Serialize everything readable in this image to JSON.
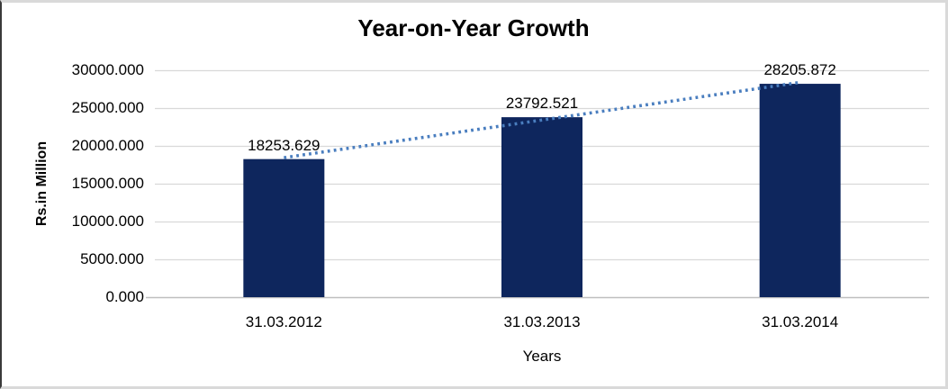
{
  "chart_data": {
    "type": "bar",
    "title": "Year-on-Year Growth",
    "categories": [
      "31.03.2012",
      "31.03.2013",
      "31.03.2014"
    ],
    "values": [
      18253.629,
      23792.521,
      28205.872
    ],
    "data_labels": [
      "18253.629",
      "23792.521",
      "28205.872"
    ],
    "xlabel": "Years",
    "ylabel": "Rs.in Million",
    "ylim": [
      0,
      30000
    ],
    "ytick_step": 5000,
    "ytick_labels": [
      "0.000",
      "5000.000",
      "10000.000",
      "15000.000",
      "20000.000",
      "25000.000",
      "30000.000"
    ],
    "grid": true,
    "legend": "none",
    "trendline": "linear-dotted",
    "colors": {
      "bar": "#0E265D",
      "trendline": "#4A7EBF",
      "gridline": "#D9D9D9",
      "axis_line": "#BFBFBF",
      "text": "#000000",
      "frame_border": "#D9D9D9",
      "left_edge": "#3A3A3A",
      "background": "#FFFFFF"
    }
  }
}
